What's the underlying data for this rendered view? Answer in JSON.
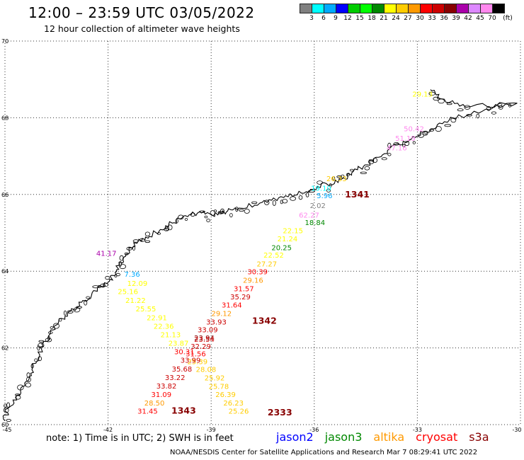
{
  "header": {
    "title": "12:00 – 23:59 UTC 03/05/2022",
    "subtitle": "12 hour collection of altimeter wave heights"
  },
  "legend": {
    "unit_label": "(ft)",
    "colors": [
      "#808080",
      "#00ffff",
      "#00aaff",
      "#0000ff",
      "#00cc00",
      "#00ff00",
      "#008800",
      "#ffff00",
      "#ffcc00",
      "#ff9900",
      "#ff0000",
      "#cc0000",
      "#880000",
      "#aa00aa",
      "#dd88ff",
      "#ff88ee",
      "#000000"
    ],
    "ticks": [
      "3",
      "6",
      "9",
      "12",
      "15",
      "18",
      "21",
      "24",
      "27",
      "30",
      "33",
      "36",
      "39",
      "42",
      "45",
      "70"
    ]
  },
  "axes": {
    "x_ticks": [
      "-45",
      "-42",
      "-39",
      "-36",
      "-33",
      "-30"
    ],
    "y_ticks": [
      "70",
      "68",
      "66",
      "64",
      "62",
      "60"
    ]
  },
  "readings": [
    {
      "text": "29.13",
      "color": "#ffff00",
      "lon": -32.85,
      "lat": 68.55
    },
    {
      "text": "50.42",
      "color": "#ff88ee",
      "lon": -33.1,
      "lat": 67.65
    },
    {
      "text": "51.19",
      "color": "#ff88ee",
      "lon": -33.35,
      "lat": 67.4
    },
    {
      "text": "47.16",
      "color": "#ff88ee",
      "lon": -33.6,
      "lat": 67.15
    },
    {
      "text": "26.33",
      "color": "#ffcc00",
      "lon": -35.35,
      "lat": 66.35
    },
    {
      "text": "19.10",
      "color": "#00ffff",
      "lon": -35.8,
      "lat": 66.1
    },
    {
      "text": "5.96",
      "color": "#00aaff",
      "lon": -35.7,
      "lat": 65.9
    },
    {
      "text": "2.02",
      "color": "#808080",
      "lon": -35.9,
      "lat": 65.65
    },
    {
      "text": "62.27",
      "color": "#ff88ee",
      "lon": -36.15,
      "lat": 65.4
    },
    {
      "text": "18.84",
      "color": "#008800",
      "lon": -35.98,
      "lat": 65.2
    },
    {
      "text": "22.15",
      "color": "#ffff00",
      "lon": -36.62,
      "lat": 64.99
    },
    {
      "text": "21.24",
      "color": "#ffff00",
      "lon": -36.78,
      "lat": 64.78
    },
    {
      "text": "20.25",
      "color": "#008800",
      "lon": -36.95,
      "lat": 64.55
    },
    {
      "text": "22.52",
      "color": "#ffff00",
      "lon": -37.18,
      "lat": 64.35
    },
    {
      "text": "27.27",
      "color": "#ffcc00",
      "lon": -37.38,
      "lat": 64.12
    },
    {
      "text": "30.39",
      "color": "#ff0000",
      "lon": -37.65,
      "lat": 63.92
    },
    {
      "text": "29.16",
      "color": "#ff9900",
      "lon": -37.78,
      "lat": 63.7
    },
    {
      "text": "31.57",
      "color": "#ff0000",
      "lon": -38.05,
      "lat": 63.48
    },
    {
      "text": "35.29",
      "color": "#cc0000",
      "lon": -38.15,
      "lat": 63.27
    },
    {
      "text": "31.64",
      "color": "#ff0000",
      "lon": -38.4,
      "lat": 63.05
    },
    {
      "text": "29.12",
      "color": "#ff9900",
      "lon": -38.7,
      "lat": 62.83
    },
    {
      "text": "33.93",
      "color": "#cc0000",
      "lon": -38.85,
      "lat": 62.61
    },
    {
      "text": "33.09",
      "color": "#cc0000",
      "lon": -39.1,
      "lat": 62.41
    },
    {
      "text": "23.94",
      "color": "#880000",
      "lon": -39.2,
      "lat": 62.2
    },
    {
      "text": "23.54",
      "color": "#cc0000",
      "lon": -39.2,
      "lat": 62.16
    },
    {
      "text": "32.29",
      "color": "#cc0000",
      "lon": -39.3,
      "lat": 61.97
    },
    {
      "text": "31.56",
      "color": "#ff0000",
      "lon": -39.45,
      "lat": 61.78
    },
    {
      "text": "25.39",
      "color": "#ffcc00",
      "lon": -39.4,
      "lat": 61.58
    },
    {
      "text": "28.08",
      "color": "#ffcc00",
      "lon": -39.15,
      "lat": 61.37
    },
    {
      "text": "25.92",
      "color": "#ffcc00",
      "lon": -38.9,
      "lat": 61.15
    },
    {
      "text": "25.78",
      "color": "#ffcc00",
      "lon": -38.78,
      "lat": 60.93
    },
    {
      "text": "26.39",
      "color": "#ffcc00",
      "lon": -38.58,
      "lat": 60.72
    },
    {
      "text": "26.23",
      "color": "#ffcc00",
      "lon": -38.35,
      "lat": 60.5
    },
    {
      "text": "25.26",
      "color": "#ffcc00",
      "lon": -38.2,
      "lat": 60.29
    },
    {
      "text": "41.17",
      "color": "#aa00aa",
      "lon": -42.05,
      "lat": 64.4
    },
    {
      "text": "7.36",
      "color": "#00aaff",
      "lon": -41.3,
      "lat": 63.86
    },
    {
      "text": "12.09",
      "color": "#ffff00",
      "lon": -41.15,
      "lat": 63.62
    },
    {
      "text": "25.16",
      "color": "#ffff00",
      "lon": -41.42,
      "lat": 63.4
    },
    {
      "text": "21.22",
      "color": "#ffff00",
      "lon": -41.2,
      "lat": 63.17
    },
    {
      "text": "25.55",
      "color": "#ffff00",
      "lon": -40.9,
      "lat": 62.95
    },
    {
      "text": "22.91",
      "color": "#ffff00",
      "lon": -40.58,
      "lat": 62.72
    },
    {
      "text": "22.36",
      "color": "#ffff00",
      "lon": -40.38,
      "lat": 62.5
    },
    {
      "text": "21.13",
      "color": "#ffff00",
      "lon": -40.18,
      "lat": 62.28
    },
    {
      "text": "23.87",
      "color": "#ffff00",
      "lon": -39.95,
      "lat": 62.06
    },
    {
      "text": "30.31",
      "color": "#ff0000",
      "lon": -39.78,
      "lat": 61.84
    },
    {
      "text": "33.99",
      "color": "#cc0000",
      "lon": -39.6,
      "lat": 61.61
    },
    {
      "text": "35.68",
      "color": "#cc0000",
      "lon": -39.85,
      "lat": 61.38
    },
    {
      "text": "33.22",
      "color": "#cc0000",
      "lon": -40.05,
      "lat": 61.16
    },
    {
      "text": "33.82",
      "color": "#cc0000",
      "lon": -40.3,
      "lat": 60.94
    },
    {
      "text": "31.09",
      "color": "#ff0000",
      "lon": -40.45,
      "lat": 60.72
    },
    {
      "text": "28.50",
      "color": "#ff9900",
      "lon": -40.65,
      "lat": 60.5
    },
    {
      "text": "31.45",
      "color": "#ff0000",
      "lon": -40.85,
      "lat": 60.29
    }
  ],
  "pass_labels": [
    {
      "text": "1341",
      "color": "#880000",
      "lon": -34.75,
      "lat": 65.92
    },
    {
      "text": "1342",
      "color": "#880000",
      "lon": -37.45,
      "lat": 62.63
    },
    {
      "text": "1343",
      "color": "#880000",
      "lon": -39.8,
      "lat": 60.29
    },
    {
      "text": "2333",
      "color": "#880000",
      "lon": -37.0,
      "lat": 60.24
    }
  ],
  "footer": {
    "note": "note:  1) Time is in UTC;  2) SWH is in feet",
    "satellites": [
      {
        "name": "jason2",
        "color": "#0000ff"
      },
      {
        "name": "jason3",
        "color": "#008800"
      },
      {
        "name": "altika",
        "color": "#ff9900"
      },
      {
        "name": "cryosat",
        "color": "#ff0000"
      },
      {
        "name": "s3a",
        "color": "#880000"
      }
    ],
    "credit": "NOAA/NESDIS Center for Satellite Applications and Research    Mar  7 08:29:41 UTC 2022"
  }
}
